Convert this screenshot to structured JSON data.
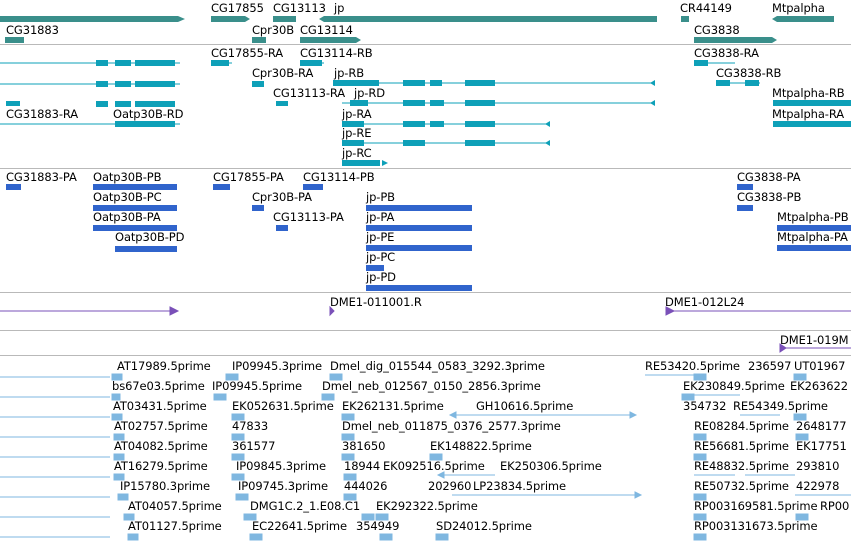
{
  "colors": {
    "gene": "#3a8f8b",
    "transcript": "#0ea0b8",
    "protein": "#3064cc",
    "oligo": "#7a50b8",
    "est": "#7fb7e0",
    "divider": "#b9b9b9"
  },
  "tracks": {
    "genes": {
      "labels": [
        {
          "id": "g1",
          "text": "CG17855"
        },
        {
          "id": "g2",
          "text": "CG13113"
        },
        {
          "id": "g3",
          "text": "jp"
        },
        {
          "id": "g4",
          "text": "CR44149"
        },
        {
          "id": "g5",
          "text": "Mtpalpha"
        },
        {
          "id": "g6",
          "text": "CG31883"
        },
        {
          "id": "g7",
          "text": "Cpr30B"
        },
        {
          "id": "g8",
          "text": "CG13114"
        },
        {
          "id": "g9",
          "text": "CG3838"
        }
      ]
    },
    "transcripts": {
      "labels": [
        {
          "id": "t1",
          "text": "CG17855-RA"
        },
        {
          "id": "t2",
          "text": "CG13114-RB"
        },
        {
          "id": "t3",
          "text": "CG3838-RA"
        },
        {
          "id": "t4",
          "text": "Cpr30B-RA"
        },
        {
          "id": "t5",
          "text": "jp-RB"
        },
        {
          "id": "t6",
          "text": "CG3838-RB"
        },
        {
          "id": "t7",
          "text": "CG13113-RA"
        },
        {
          "id": "t8",
          "text": "jp-RD"
        },
        {
          "id": "t9",
          "text": "Mtpalpha-RB"
        },
        {
          "id": "t10",
          "text": "CG31883-RA"
        },
        {
          "id": "t11",
          "text": "Oatp30B-RD"
        },
        {
          "id": "t12",
          "text": "jp-RA"
        },
        {
          "id": "t13",
          "text": "Mtpalpha-RA"
        },
        {
          "id": "t14",
          "text": "jp-RE"
        },
        {
          "id": "t15",
          "text": "jp-RC"
        }
      ]
    },
    "proteins": {
      "labels": [
        {
          "id": "p1",
          "text": "CG31883-PA"
        },
        {
          "id": "p2",
          "text": "Oatp30B-PB"
        },
        {
          "id": "p3",
          "text": "CG17855-PA"
        },
        {
          "id": "p4",
          "text": "CG13114-PB"
        },
        {
          "id": "p5",
          "text": "CG3838-PA"
        },
        {
          "id": "p6",
          "text": "Oatp30B-PC"
        },
        {
          "id": "p7",
          "text": "Cpr30B-PA"
        },
        {
          "id": "p8",
          "text": "jp-PB"
        },
        {
          "id": "p9",
          "text": "CG3838-PB"
        },
        {
          "id": "p10",
          "text": "Oatp30B-PA"
        },
        {
          "id": "p11",
          "text": "CG13113-PA"
        },
        {
          "id": "p12",
          "text": "jp-PA"
        },
        {
          "id": "p13",
          "text": "Mtpalpha-PB"
        },
        {
          "id": "p14",
          "text": "Oatp30B-PD"
        },
        {
          "id": "p15",
          "text": "jp-PE"
        },
        {
          "id": "p16",
          "text": "Mtpalpha-PA"
        },
        {
          "id": "p17",
          "text": "jp-PC"
        },
        {
          "id": "p18",
          "text": "jp-PD"
        }
      ]
    },
    "oligos": {
      "labels": [
        {
          "id": "o1",
          "text": "DME1-011001.R"
        },
        {
          "id": "o2",
          "text": "DME1-012L24"
        },
        {
          "id": "o3",
          "text": "DME1-019M"
        }
      ]
    },
    "ests": {
      "labels": [
        {
          "id": "e1",
          "text": "AT17989.5prime"
        },
        {
          "id": "e2",
          "text": "IP09945.3prime"
        },
        {
          "id": "e3",
          "text": "Dmel_dig_015544_0583_3292.3prime"
        },
        {
          "id": "e4",
          "text": "RE53420.5prime"
        },
        {
          "id": "e5",
          "text": "236597"
        },
        {
          "id": "e6",
          "text": "UT01967"
        },
        {
          "id": "e7",
          "text": "bs67e03.5prime"
        },
        {
          "id": "e8",
          "text": "IP09945.5prime"
        },
        {
          "id": "e9",
          "text": "Dmel_neb_012567_0150_2856.3prime"
        },
        {
          "id": "e10",
          "text": "EK230849.5prime"
        },
        {
          "id": "e11",
          "text": "EK263622"
        },
        {
          "id": "e12",
          "text": "AT03431.5prime"
        },
        {
          "id": "e13",
          "text": "EK052631.5prime"
        },
        {
          "id": "e14",
          "text": "EK262131.5prime"
        },
        {
          "id": "e15",
          "text": "GH10616.5prime"
        },
        {
          "id": "e16",
          "text": "354732"
        },
        {
          "id": "e17",
          "text": "RE54349.5prime"
        },
        {
          "id": "e18",
          "text": "AT02757.5prime"
        },
        {
          "id": "e19",
          "text": "47833"
        },
        {
          "id": "e20",
          "text": "Dmel_neb_011875_0376_2577.3prime"
        },
        {
          "id": "e21",
          "text": "RE08284.5prime"
        },
        {
          "id": "e22",
          "text": "2648177"
        },
        {
          "id": "e23",
          "text": "AT04082.5prime"
        },
        {
          "id": "e24",
          "text": "361577"
        },
        {
          "id": "e25",
          "text": "381650"
        },
        {
          "id": "e26",
          "text": "EK148822.5prime"
        },
        {
          "id": "e27",
          "text": "RE56681.5prime"
        },
        {
          "id": "e28",
          "text": "EK17751"
        },
        {
          "id": "e29",
          "text": "AT16279.5prime"
        },
        {
          "id": "e30",
          "text": "IP09845.3prime"
        },
        {
          "id": "e31",
          "text": "18944"
        },
        {
          "id": "e32",
          "text": "EK092516.5prime"
        },
        {
          "id": "e33",
          "text": "EK250306.5prime"
        },
        {
          "id": "e34",
          "text": "RE48832.5prime"
        },
        {
          "id": "e35",
          "text": "293810"
        },
        {
          "id": "e36",
          "text": "IP15780.3prime"
        },
        {
          "id": "e37",
          "text": "IP09745.3prime"
        },
        {
          "id": "e38",
          "text": "444026"
        },
        {
          "id": "e39",
          "text": "202960"
        },
        {
          "id": "e40",
          "text": "LP23834.5prime"
        },
        {
          "id": "e41",
          "text": "RE50732.5prime"
        },
        {
          "id": "e42",
          "text": "422978"
        },
        {
          "id": "e43",
          "text": "AT04057.5prime"
        },
        {
          "id": "e44",
          "text": "DMG1C.2_1.E08.C1"
        },
        {
          "id": "e45",
          "text": "EK292322.5prime"
        },
        {
          "id": "e46",
          "text": "RP003169581.5prime"
        },
        {
          "id": "e47",
          "text": "RP00"
        },
        {
          "id": "e48",
          "text": "AT01127.5prime"
        },
        {
          "id": "e49",
          "text": "EC22641.5prime"
        },
        {
          "id": "e50",
          "text": "354949"
        },
        {
          "id": "e51",
          "text": "SD24012.5prime"
        },
        {
          "id": "e52",
          "text": "RP003131673.5prime"
        }
      ]
    }
  }
}
